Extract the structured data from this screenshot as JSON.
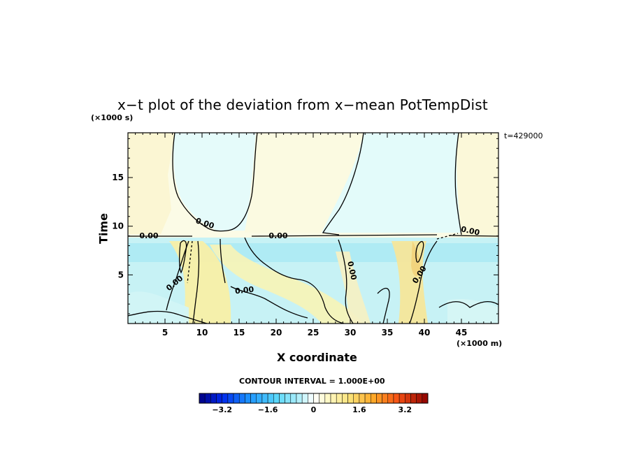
{
  "chart_data": {
    "type": "heatmap",
    "title": "x−t plot of the deviation from x−mean PotTempDist",
    "xlabel": "X coordinate",
    "ylabel": "Time",
    "x_unit_label": "(×1000 m)",
    "y_unit_label": "(×1000 s)",
    "time_stamp": "t=429000",
    "xlim": [
      0,
      50
    ],
    "ylim": [
      0,
      19.6
    ],
    "x_ticks": [
      5,
      10,
      15,
      20,
      25,
      30,
      35,
      40,
      45
    ],
    "x_tick_labels": [
      "5",
      "10",
      "15",
      "20",
      "25",
      "30",
      "35",
      "40",
      "45"
    ],
    "y_ticks": [
      5,
      10,
      15
    ],
    "y_tick_labels": [
      "5",
      "10",
      "15"
    ],
    "contour_label": "0.00",
    "contour_interval_text": "CONTOUR INTERVAL = 1.000E+00",
    "colorbar": {
      "min": -4.0,
      "max": 4.0,
      "step": 0.2,
      "tick_values": [
        -3.2,
        -1.6,
        0,
        1.6,
        3.2
      ],
      "tick_labels": [
        "−3.2",
        "−1.6",
        "0",
        "1.6",
        "3.2"
      ]
    },
    "field_summary": {
      "upper_region_above_t_9": "weak deviations (-0.2 to +0.4); warmer pale yellow near x=0-8, x=15-27 and x=44-50; cooler pale cyan near x=6-16 and x=30-43",
      "lower_region_below_t_9": "mostly cool (-0.6 to -1.0) with warm streaks (+0.4 to +1.0) around x=8-14, x=16-23 and x=36-42",
      "zero_contour_at_t_approx": 9.1
    }
  }
}
